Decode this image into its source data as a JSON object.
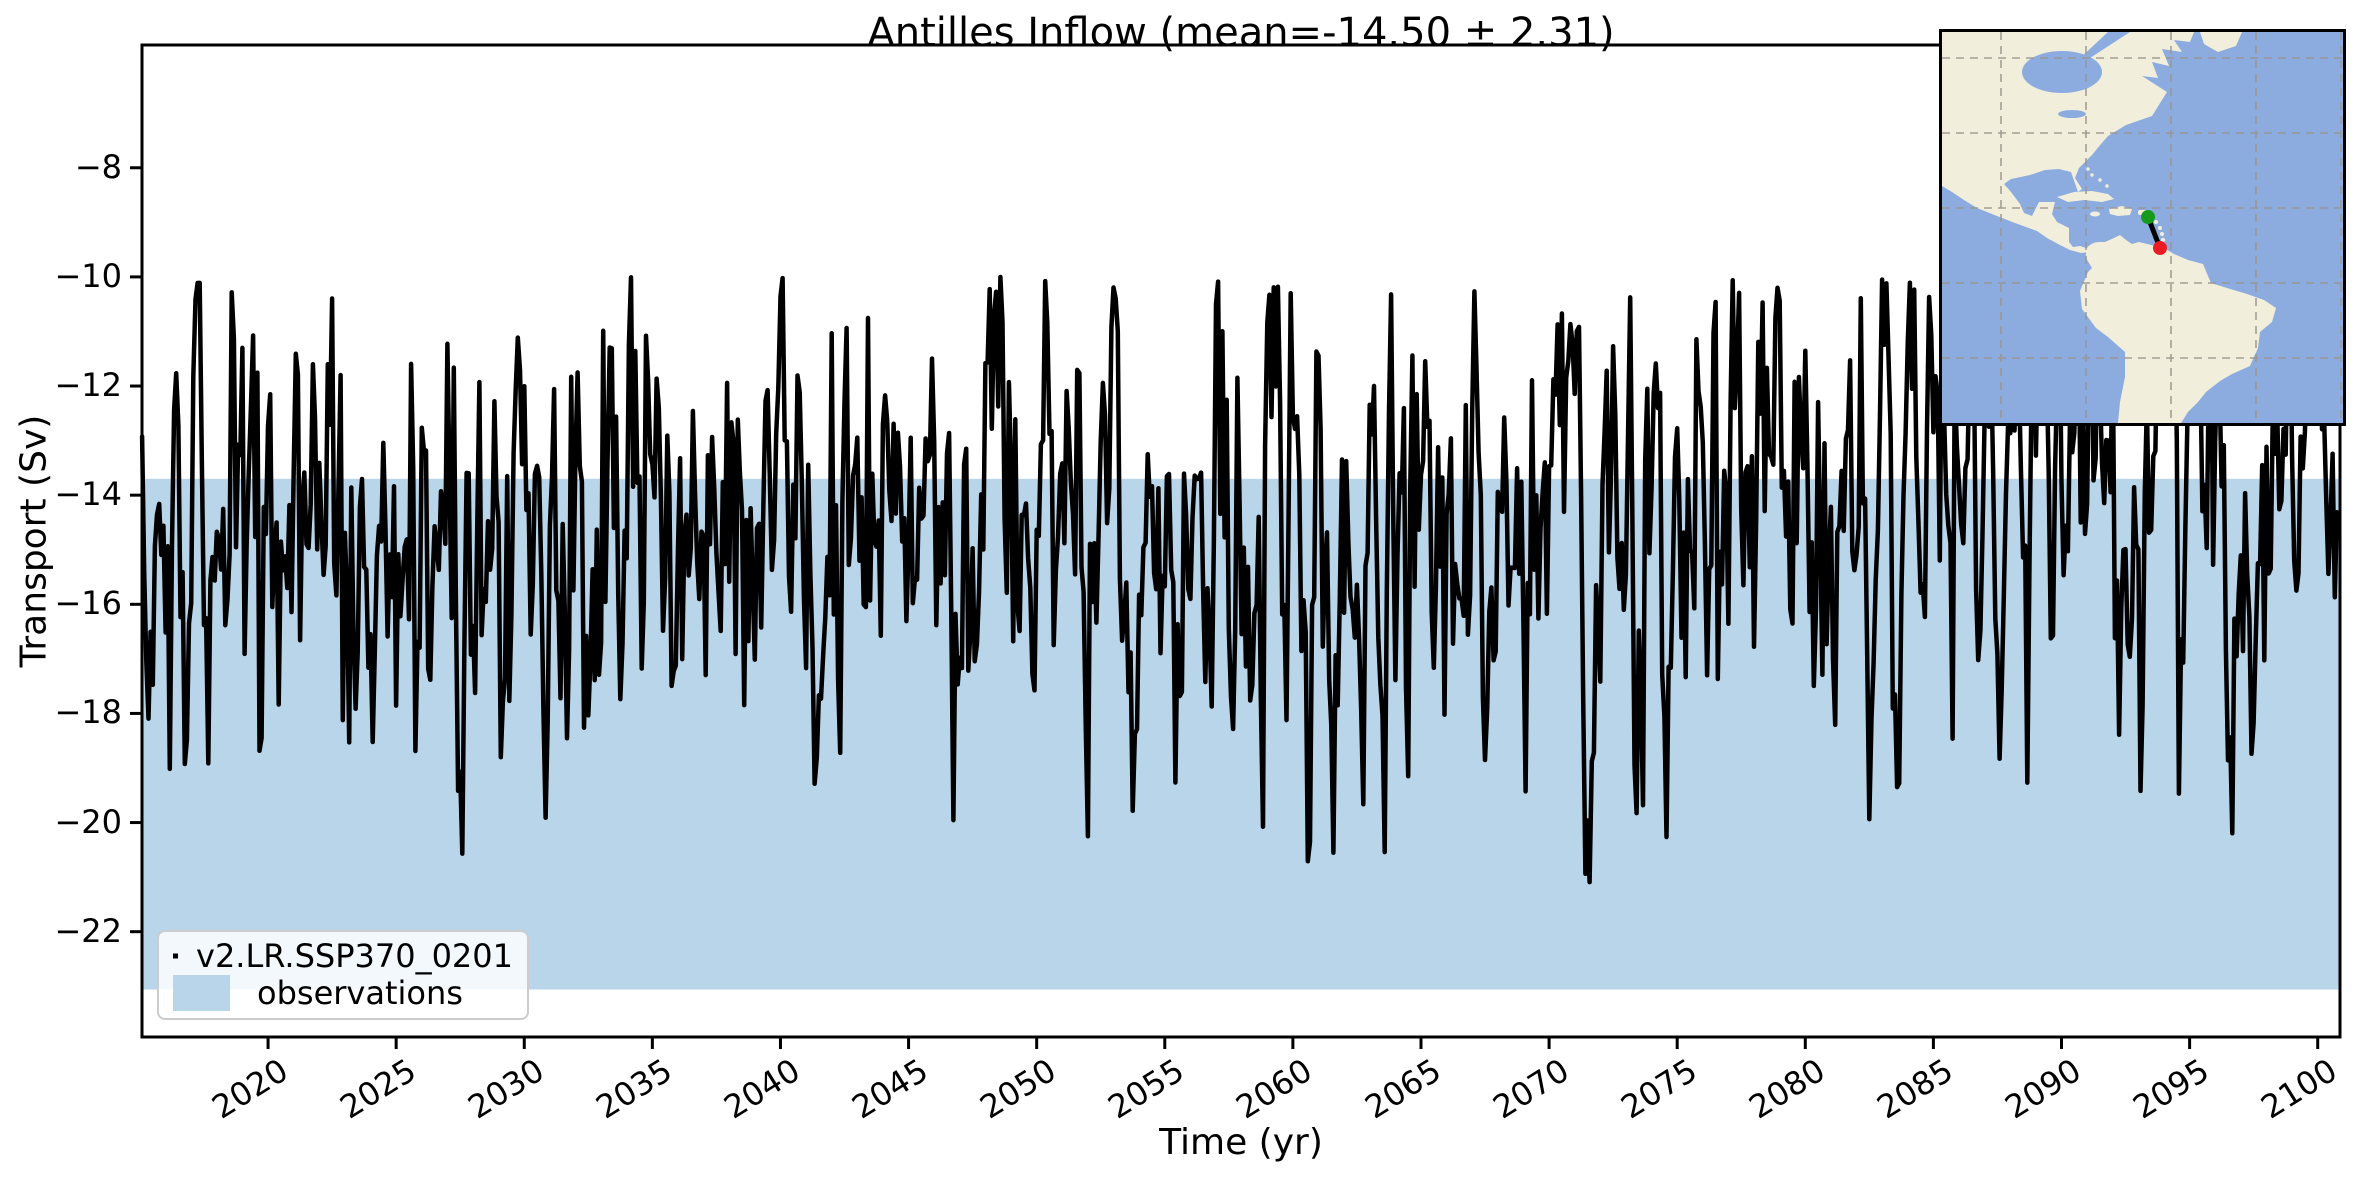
{
  "title": "Antilles Inflow (mean=-14.50 ± 2.31)",
  "stats": {
    "mean_sv": -14.5,
    "std_sv": 2.31
  },
  "axes": {
    "x_label": "Time (yr)",
    "y_label": "Transport (Sv)",
    "x_tick_years": [
      2020,
      2025,
      2030,
      2035,
      2040,
      2045,
      2050,
      2055,
      2060,
      2065,
      2070,
      2075,
      2080,
      2085,
      2090,
      2095,
      2100
    ],
    "x_tick_labels": [
      "2020",
      "2025",
      "2030",
      "2035",
      "2040",
      "2045",
      "2050",
      "2055",
      "2060",
      "2065",
      "2070",
      "2075",
      "2080",
      "2085",
      "2090",
      "2095",
      "2100"
    ],
    "y_tick_values": [
      -8,
      -10,
      -12,
      -14,
      -16,
      -18,
      -20,
      -22
    ],
    "y_tick_labels": [
      "−8",
      "−10",
      "−12",
      "−14",
      "−16",
      "−18",
      "−20",
      "−22"
    ]
  },
  "legend": {
    "entries": [
      {
        "label": "v2.LR.SSP370_0201",
        "swatch": "line",
        "color": "#000000"
      },
      {
        "label": "observations",
        "swatch": "patch",
        "color": "#b9d5ea"
      }
    ]
  },
  "chart_data": {
    "type": "line",
    "title": "Antilles Inflow (mean=-14.50 ± 2.31)",
    "xlabel": "Time (yr)",
    "ylabel": "Transport (Sv)",
    "xlim": [
      2015.08,
      2100.87
    ],
    "ylim": [
      -23.93,
      -5.75
    ],
    "grid": false,
    "legend_position": "lower left",
    "series": [
      {
        "name": "v2.LR.SSP370_0201",
        "color": "#000000",
        "linewidth": 4.5,
        "sampling": "monthly",
        "start_year": 2015.083,
        "end_year": 2100.83,
        "mean": -14.5,
        "std": 2.31,
        "seasonal_amplitude": 0.9,
        "trend_sv_per_year": 0.012,
        "observed_min": -21.1,
        "observed_max": -10.0,
        "seed": 42
      }
    ],
    "band": {
      "name": "observations",
      "color": "#b9d5ea",
      "upper": -13.7,
      "lower": -23.06
    }
  },
  "inset_map": {
    "region": "Caribbean / Antilles section with western Atlantic and the Americas",
    "ocean_color": "#8cace0",
    "land_color": "#f1efdb",
    "grid_color": "#9a958c",
    "section_line_color": "#000000",
    "start_point_color": "#169a1e",
    "end_point_color": "#ea1c24"
  }
}
